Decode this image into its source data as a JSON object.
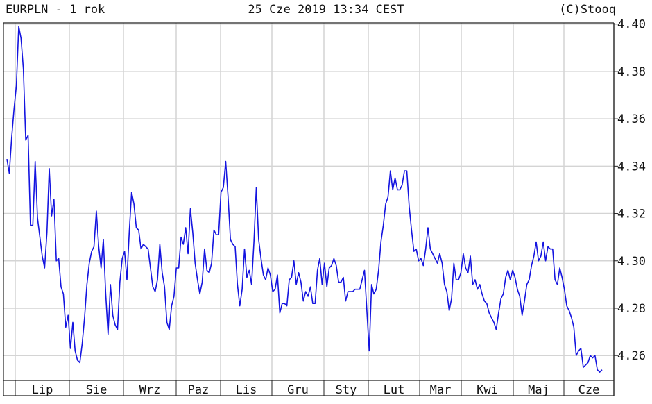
{
  "header": {
    "title": "EURPLN - 1 rok",
    "datetime": "25 Cze 2019 13:34 CEST",
    "copyright": "(C)Stooq"
  },
  "chart_data": {
    "type": "line",
    "title": "EURPLN - 1 rok",
    "ylim": [
      4.2495,
      4.4005
    ],
    "yticks": [
      4.26,
      4.28,
      4.3,
      4.32,
      4.34,
      4.36,
      4.38,
      4.4
    ],
    "ytick_labels": [
      "4.26",
      "4.28",
      "4.30",
      "4.32",
      "4.34",
      "4.36",
      "4.38",
      "4.40"
    ],
    "months": [
      "Lip",
      "Sie",
      "Wrz",
      "Paz",
      "Lis",
      "Gru",
      "Sty",
      "Lut",
      "Mar",
      "Kwi",
      "Maj",
      "Cze"
    ],
    "grid": true,
    "line_color": "#1414e0",
    "series": [
      {
        "values": [
          4.343,
          4.337,
          4.352,
          4.364,
          4.374,
          4.399,
          4.394,
          4.381,
          4.351,
          4.353,
          4.315,
          4.315,
          4.342,
          4.318,
          4.31,
          4.302,
          4.297,
          4.312,
          4.339,
          4.319,
          4.326,
          4.3,
          4.301,
          4.289,
          4.286,
          4.272,
          4.277,
          4.263,
          4.274,
          4.262,
          4.258,
          4.257,
          4.265,
          4.276,
          4.29,
          4.299,
          4.304,
          4.306,
          4.321,
          4.306,
          4.297,
          4.309,
          4.286,
          4.269,
          4.29,
          4.277,
          4.273,
          4.271,
          4.291,
          4.301,
          4.304,
          4.292,
          4.312,
          4.329,
          4.324,
          4.314,
          4.313,
          4.305,
          4.307,
          4.306,
          4.305,
          4.297,
          4.289,
          4.287,
          4.292,
          4.307,
          4.295,
          4.289,
          4.274,
          4.271,
          4.281,
          4.285,
          4.297,
          4.297,
          4.31,
          4.307,
          4.314,
          4.303,
          4.322,
          4.312,
          4.299,
          4.292,
          4.286,
          4.291,
          4.305,
          4.296,
          4.295,
          4.299,
          4.313,
          4.311,
          4.311,
          4.329,
          4.331,
          4.342,
          4.327,
          4.309,
          4.307,
          4.306,
          4.29,
          4.281,
          4.288,
          4.305,
          4.293,
          4.296,
          4.29,
          4.308,
          4.331,
          4.309,
          4.301,
          4.294,
          4.292,
          4.297,
          4.294,
          4.287,
          4.288,
          4.294,
          4.278,
          4.282,
          4.282,
          4.281,
          4.292,
          4.293,
          4.3,
          4.29,
          4.295,
          4.291,
          4.283,
          4.287,
          4.285,
          4.289,
          4.282,
          4.282,
          4.296,
          4.301,
          4.29,
          4.299,
          4.289,
          4.297,
          4.298,
          4.301,
          4.298,
          4.291,
          4.291,
          4.293,
          4.283,
          4.287,
          4.287,
          4.287,
          4.288,
          4.288,
          4.288,
          4.292,
          4.296,
          4.279,
          4.262,
          4.29,
          4.286,
          4.288,
          4.296,
          4.308,
          4.315,
          4.324,
          4.327,
          4.338,
          4.33,
          4.335,
          4.33,
          4.33,
          4.332,
          4.338,
          4.338,
          4.323,
          4.313,
          4.304,
          4.305,
          4.3,
          4.301,
          4.298,
          4.305,
          4.314,
          4.305,
          4.303,
          4.301,
          4.299,
          4.303,
          4.299,
          4.29,
          4.287,
          4.279,
          4.284,
          4.299,
          4.292,
          4.292,
          4.295,
          4.303,
          4.297,
          4.295,
          4.302,
          4.29,
          4.292,
          4.288,
          4.29,
          4.286,
          4.283,
          4.282,
          4.278,
          4.276,
          4.274,
          4.271,
          4.278,
          4.284,
          4.286,
          4.293,
          4.296,
          4.292,
          4.296,
          4.293,
          4.288,
          4.285,
          4.277,
          4.283,
          4.29,
          4.292,
          4.298,
          4.302,
          4.308,
          4.3,
          4.302,
          4.308,
          4.3,
          4.306,
          4.305,
          4.305,
          4.292,
          4.29,
          4.297,
          4.293,
          4.288,
          4.281,
          4.279,
          4.276,
          4.272,
          4.26,
          4.262,
          4.263,
          4.255,
          4.256,
          4.257,
          4.26,
          4.259,
          4.26,
          4.254,
          4.253,
          4.254
        ]
      }
    ]
  }
}
